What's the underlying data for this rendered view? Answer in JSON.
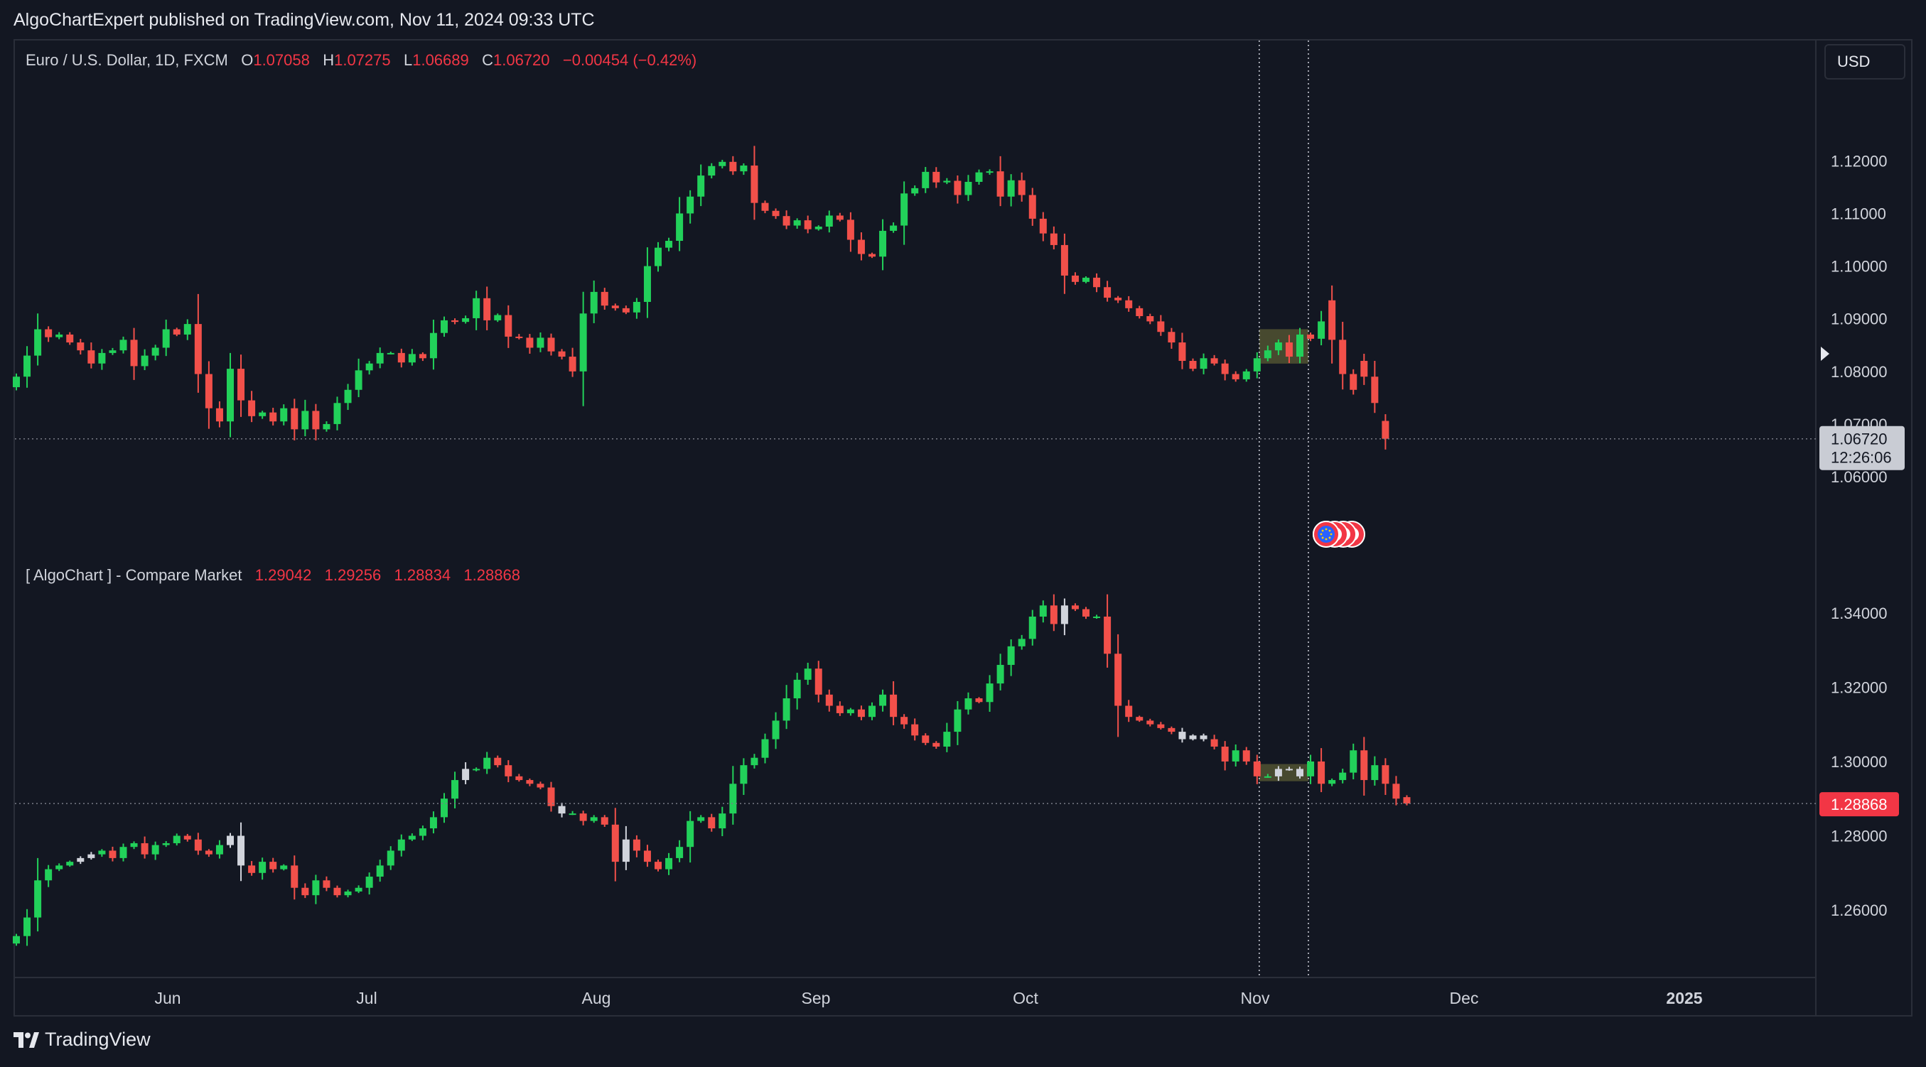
{
  "header": {
    "published": "AlgoChartExpert published on TradingView.com, Nov 11, 2024 09:33 UTC"
  },
  "footer": {
    "brand": "TradingView"
  },
  "legend_top": {
    "symbol": "Euro / U.S. Dollar, 1D, FXCM",
    "o_label": "O",
    "o": "1.07058",
    "h_label": "H",
    "h": "1.07275",
    "l_label": "L",
    "l": "1.06689",
    "c_label": "C",
    "c": "1.06720",
    "change": "−0.00454 (−0.42%)"
  },
  "legend_bottom": {
    "name": "[ AlgoChart ] - Compare Market",
    "v1": "1.29042",
    "v2": "1.29256",
    "v3": "1.28834",
    "v4": "1.28868"
  },
  "axis": {
    "currency": "USD",
    "last_price": "1.06720",
    "countdown": "12:26:06",
    "lower_last": "1.28868"
  },
  "colors": {
    "up": "#22d15a",
    "down": "#f2504a",
    "neutral": "#d1d4dc",
    "background": "#131722",
    "highlight": "#5a5b34"
  },
  "chart_data": [
    {
      "type": "candlestick",
      "title": "Euro / U.S. Dollar, 1D, FXCM",
      "ylim": [
        1.048,
        1.133
      ],
      "yticks": [
        "1.06000",
        "1.07000",
        "1.08000",
        "1.09000",
        "1.10000",
        "1.11000",
        "1.12000"
      ],
      "xticks": [
        "Jun",
        "Jul",
        "Aug",
        "Sep",
        "Oct",
        "Nov",
        "Dec",
        "2025"
      ],
      "close": [
        1.079,
        1.083,
        1.088,
        1.0865,
        1.087,
        1.0855,
        1.084,
        1.0815,
        1.0835,
        1.084,
        1.086,
        1.081,
        1.083,
        1.0845,
        1.088,
        1.087,
        1.089,
        1.0795,
        1.073,
        1.0705,
        1.0805,
        1.0745,
        1.0715,
        1.0722,
        1.0705,
        1.073,
        1.069,
        1.0725,
        1.069,
        1.07,
        1.074,
        1.0765,
        1.0802,
        1.0815,
        1.0835,
        1.0835,
        1.0817,
        1.0833,
        1.0825,
        1.0873,
        1.0897,
        1.0894,
        1.0901,
        1.0939,
        1.0897,
        1.0907,
        1.0866,
        1.0864,
        1.0845,
        1.0864,
        1.0838,
        1.0828,
        1.08,
        1.091,
        1.0951,
        1.0925,
        1.092,
        1.0912,
        1.0932,
        1.1,
        1.1035,
        1.1048,
        1.11,
        1.1132,
        1.1172,
        1.119,
        1.1198,
        1.118,
        1.1191,
        1.112,
        1.1105,
        1.1095,
        1.1077,
        1.1087,
        1.107,
        1.1075,
        1.1096,
        1.1088,
        1.105,
        1.1023,
        1.1018,
        1.1067,
        1.1077,
        1.1138,
        1.1148,
        1.1179,
        1.1159,
        1.1162,
        1.1135,
        1.116,
        1.1178,
        1.118,
        1.1132,
        1.1163,
        1.1135,
        1.109,
        1.1062,
        1.104,
        1.0982,
        1.097,
        1.0978,
        1.096,
        1.094,
        1.0935,
        1.092,
        1.0905,
        1.0895,
        1.0875,
        1.0855,
        1.082,
        1.0805,
        1.0825,
        1.0815,
        1.0795,
        1.0785,
        1.08,
        1.0825,
        1.084,
        1.0855,
        1.0828,
        1.087,
        1.0862,
        1.0895,
        1.086,
        1.0795,
        1.0765,
        1.079,
        1.074,
        1.0672
      ],
      "open": [
        1.077,
        1.079,
        1.083,
        1.088,
        1.0865,
        1.087,
        1.0855,
        1.084,
        1.0815,
        1.0835,
        1.084,
        1.086,
        1.081,
        1.083,
        1.0845,
        1.088,
        1.087,
        1.089,
        1.0795,
        1.073,
        1.0705,
        1.0805,
        1.0745,
        1.0715,
        1.0722,
        1.0705,
        1.073,
        1.069,
        1.0725,
        1.069,
        1.07,
        1.074,
        1.0765,
        1.0802,
        1.0815,
        1.0835,
        1.0835,
        1.0817,
        1.0833,
        1.0825,
        1.0873,
        1.0897,
        1.0894,
        1.0901,
        1.0939,
        1.0897,
        1.0907,
        1.0866,
        1.0864,
        1.0845,
        1.0864,
        1.0838,
        1.0828,
        1.08,
        1.091,
        1.0951,
        1.0925,
        1.092,
        1.0912,
        1.0932,
        1.1,
        1.1035,
        1.1048,
        1.11,
        1.1132,
        1.1172,
        1.119,
        1.1198,
        1.118,
        1.1191,
        1.112,
        1.1105,
        1.1095,
        1.1077,
        1.1087,
        1.107,
        1.1075,
        1.1096,
        1.1088,
        1.105,
        1.1023,
        1.1018,
        1.1067,
        1.1077,
        1.1138,
        1.1148,
        1.1179,
        1.1159,
        1.1162,
        1.1135,
        1.116,
        1.1178,
        1.118,
        1.1132,
        1.1163,
        1.1135,
        1.109,
        1.1062,
        1.104,
        1.0982,
        1.097,
        1.0978,
        1.096,
        1.094,
        1.0935,
        1.092,
        1.0905,
        1.0895,
        1.0875,
        1.0855,
        1.082,
        1.0805,
        1.0825,
        1.0815,
        1.0795,
        1.0785,
        1.08,
        1.0825,
        1.084,
        1.0855,
        1.0828,
        1.087,
        1.0862,
        1.0935,
        1.086,
        1.0795,
        1.082,
        1.079,
        1.0706
      ],
      "highlight_range": [
        117,
        120
      ]
    },
    {
      "type": "candlestick",
      "title": "[ AlgoChart ] - Compare Market",
      "ylim": [
        1.243,
        1.352
      ],
      "yticks": [
        "1.26000",
        "1.28000",
        "1.30000",
        "1.32000",
        "1.34000"
      ],
      "close": [
        1.253,
        1.258,
        1.268,
        1.271,
        1.272,
        1.273,
        1.274,
        1.275,
        1.276,
        1.274,
        1.277,
        1.278,
        1.275,
        1.2775,
        1.278,
        1.28,
        1.279,
        1.276,
        1.275,
        1.2775,
        1.28,
        1.272,
        1.27,
        1.273,
        1.271,
        1.272,
        1.266,
        1.264,
        1.268,
        1.266,
        1.264,
        1.265,
        1.266,
        1.269,
        1.272,
        1.276,
        1.279,
        1.28,
        1.282,
        1.285,
        1.29,
        1.295,
        1.298,
        1.298,
        1.301,
        1.299,
        1.296,
        1.295,
        1.294,
        1.293,
        1.288,
        1.286,
        1.286,
        1.284,
        1.285,
        1.283,
        1.273,
        1.279,
        1.276,
        1.273,
        1.271,
        1.274,
        1.277,
        1.284,
        1.285,
        1.282,
        1.286,
        1.294,
        1.299,
        1.301,
        1.306,
        1.311,
        1.317,
        1.322,
        1.325,
        1.318,
        1.315,
        1.313,
        1.314,
        1.312,
        1.315,
        1.318,
        1.312,
        1.31,
        1.307,
        1.305,
        1.304,
        1.308,
        1.314,
        1.317,
        1.316,
        1.321,
        1.326,
        1.331,
        1.333,
        1.339,
        1.342,
        1.337,
        1.342,
        1.341,
        1.339,
        1.339,
        1.329,
        1.315,
        1.312,
        1.311,
        1.31,
        1.309,
        1.308,
        1.306,
        1.307,
        1.306,
        1.304,
        1.3,
        1.303,
        1.3,
        1.296,
        1.296,
        1.298,
        1.298,
        1.296,
        1.3,
        1.294,
        1.295,
        1.297,
        1.303,
        1.295,
        1.299,
        1.294,
        1.29,
        1.2887
      ],
      "open": [
        1.251,
        1.253,
        1.258,
        1.268,
        1.271,
        1.272,
        1.273,
        1.274,
        1.275,
        1.276,
        1.274,
        1.277,
        1.278,
        1.275,
        1.2775,
        1.278,
        1.28,
        1.279,
        1.276,
        1.275,
        1.2775,
        1.28,
        1.272,
        1.27,
        1.273,
        1.271,
        1.272,
        1.266,
        1.264,
        1.268,
        1.266,
        1.264,
        1.265,
        1.266,
        1.269,
        1.272,
        1.276,
        1.279,
        1.28,
        1.282,
        1.285,
        1.29,
        1.295,
        1.298,
        1.298,
        1.301,
        1.299,
        1.296,
        1.295,
        1.294,
        1.293,
        1.288,
        1.286,
        1.286,
        1.284,
        1.285,
        1.283,
        1.273,
        1.279,
        1.276,
        1.273,
        1.271,
        1.274,
        1.277,
        1.284,
        1.285,
        1.282,
        1.286,
        1.294,
        1.299,
        1.301,
        1.306,
        1.311,
        1.317,
        1.322,
        1.325,
        1.318,
        1.315,
        1.313,
        1.314,
        1.312,
        1.315,
        1.318,
        1.312,
        1.31,
        1.307,
        1.305,
        1.304,
        1.308,
        1.314,
        1.317,
        1.316,
        1.321,
        1.326,
        1.331,
        1.333,
        1.339,
        1.342,
        1.337,
        1.342,
        1.341,
        1.339,
        1.339,
        1.329,
        1.315,
        1.312,
        1.311,
        1.31,
        1.309,
        1.308,
        1.306,
        1.307,
        1.306,
        1.304,
        1.3,
        1.303,
        1.3,
        1.296,
        1.296,
        1.298,
        1.298,
        1.296,
        1.3,
        1.294,
        1.295,
        1.297,
        1.303,
        1.295,
        1.299,
        1.294,
        1.2904
      ],
      "neutral_idx": [
        6,
        7,
        20,
        21,
        42,
        51,
        57,
        98,
        109,
        110,
        111,
        118,
        119,
        120
      ],
      "highlight_range": [
        117,
        120
      ]
    }
  ]
}
